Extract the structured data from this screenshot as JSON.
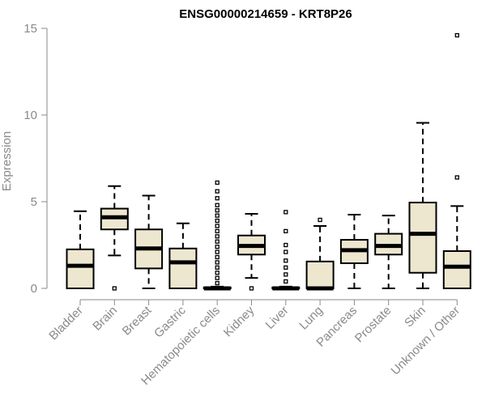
{
  "chart_data": {
    "type": "box",
    "title": "ENSG00000214659 - KRT8P26",
    "xlabel": "",
    "ylabel": "Expression",
    "ylim": [
      0,
      15
    ],
    "yticks": [
      0,
      5,
      10,
      15
    ],
    "grid": false,
    "box_fill": "#ede7d0",
    "stroke": "#000000",
    "categories": [
      "Bladder",
      "Brain",
      "Breast",
      "Gastric",
      "Hematopoietic cells",
      "Kidney",
      "Liver",
      "Lung",
      "Pancreas",
      "Prostate",
      "Skin",
      "Unknown / Other"
    ],
    "boxes": [
      {
        "category": "Bladder",
        "whisker_low": 0.0,
        "q1": 0.0,
        "median": 1.3,
        "q3": 2.25,
        "whisker_high": 4.45,
        "outliers": []
      },
      {
        "category": "Brain",
        "whisker_low": 1.9,
        "q1": 3.4,
        "median": 4.1,
        "q3": 4.6,
        "whisker_high": 5.9,
        "outliers": [
          0.0
        ]
      },
      {
        "category": "Breast",
        "whisker_low": 0.0,
        "q1": 1.15,
        "median": 2.3,
        "q3": 3.4,
        "whisker_high": 5.35,
        "outliers": []
      },
      {
        "category": "Gastric",
        "whisker_low": 0.0,
        "q1": 0.0,
        "median": 1.5,
        "q3": 2.3,
        "whisker_high": 3.75,
        "outliers": []
      },
      {
        "category": "Hematopoietic cells",
        "whisker_low": 0.0,
        "q1": 0.0,
        "median": 0.0,
        "q3": 0.05,
        "whisker_high": 0.1,
        "outliers": [
          6.1,
          5.6,
          5.2,
          4.8,
          4.5,
          4.2,
          3.9,
          3.6,
          3.3,
          3.0,
          2.7,
          2.4,
          2.1,
          1.8,
          1.5,
          1.2,
          0.9,
          0.6,
          0.3
        ]
      },
      {
        "category": "Kidney",
        "whisker_low": 0.6,
        "q1": 1.95,
        "median": 2.45,
        "q3": 3.05,
        "whisker_high": 4.3,
        "outliers": [
          0.0
        ]
      },
      {
        "category": "Liver",
        "whisker_low": 0.0,
        "q1": 0.0,
        "median": 0.0,
        "q3": 0.05,
        "whisker_high": 0.1,
        "outliers": [
          4.4,
          3.3,
          2.5,
          2.1,
          1.6,
          1.2,
          0.8,
          0.4
        ]
      },
      {
        "category": "Lung",
        "whisker_low": 0.0,
        "q1": 0.0,
        "median": 0.0,
        "q3": 1.55,
        "whisker_high": 3.6,
        "outliers": [
          3.95
        ]
      },
      {
        "category": "Pancreas",
        "whisker_low": 0.0,
        "q1": 1.45,
        "median": 2.2,
        "q3": 2.8,
        "whisker_high": 4.25,
        "outliers": []
      },
      {
        "category": "Prostate",
        "whisker_low": 0.0,
        "q1": 1.95,
        "median": 2.45,
        "q3": 3.15,
        "whisker_high": 4.2,
        "outliers": []
      },
      {
        "category": "Skin",
        "whisker_low": 0.0,
        "q1": 0.9,
        "median": 3.15,
        "q3": 4.95,
        "whisker_high": 9.55,
        "outliers": []
      },
      {
        "category": "Unknown / Other",
        "whisker_low": 0.0,
        "q1": 0.0,
        "median": 1.25,
        "q3": 2.15,
        "whisker_high": 4.75,
        "outliers": [
          6.4,
          14.6
        ]
      }
    ]
  }
}
